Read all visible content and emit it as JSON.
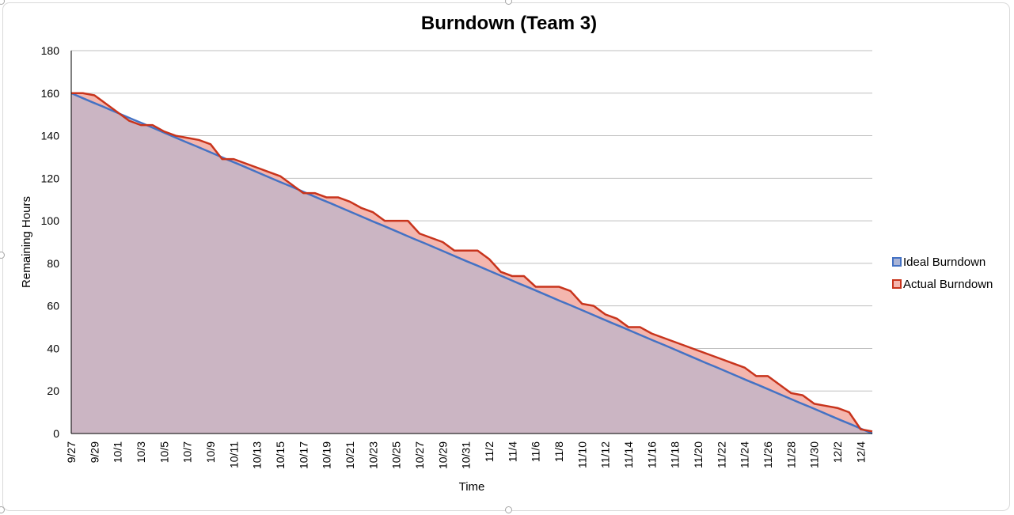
{
  "chart_data": {
    "type": "area",
    "title": "Burndown (Team 3)",
    "xlabel": "Time",
    "ylabel": "Remaining  Hours",
    "ylim": [
      0,
      180
    ],
    "yticks": [
      0,
      20,
      40,
      60,
      80,
      100,
      120,
      140,
      160,
      180
    ],
    "grid": true,
    "legend_position": "right",
    "x_start": "9/27",
    "x_tick_labels": [
      "9/27",
      "9/29",
      "10/1",
      "10/3",
      "10/5",
      "10/7",
      "10/9",
      "10/11",
      "10/13",
      "10/15",
      "10/17",
      "10/19",
      "10/21",
      "10/23",
      "10/25",
      "10/27",
      "10/29",
      "10/31",
      "11/2",
      "11/4",
      "11/6",
      "11/8",
      "11/10",
      "11/12",
      "11/14",
      "11/16",
      "11/18",
      "11/20",
      "11/22",
      "11/24",
      "11/26",
      "11/28",
      "11/30",
      "12/2",
      "12/4"
    ],
    "x_end": "12/5",
    "series": [
      {
        "name": "Ideal Burndown",
        "color": "#4472c4",
        "fill": "#aab4d6",
        "values": [
          160,
          157.9,
          155.8,
          153.8,
          151.7,
          149.6,
          147.5,
          145.5,
          143.4,
          141.3,
          139.2,
          137.1,
          135.1,
          133.0,
          130.9,
          128.8,
          126.8,
          124.7,
          122.6,
          120.5,
          118.4,
          116.4,
          114.3,
          112.2,
          110.1,
          108.1,
          106.0,
          103.9,
          101.8,
          99.7,
          97.7,
          95.6,
          93.5,
          91.4,
          89.4,
          87.3,
          85.2,
          83.1,
          81.0,
          79.0,
          76.9,
          74.8,
          72.7,
          70.6,
          68.6,
          66.5,
          64.4,
          62.3,
          60.3,
          58.2,
          56.1,
          54.0,
          51.9,
          49.9,
          47.8,
          45.7,
          43.6,
          41.6,
          39.5,
          37.4,
          35.3,
          33.2,
          31.2,
          29.1,
          27.0,
          24.9,
          22.9,
          20.8,
          18.7,
          16.6,
          14.5,
          12.5,
          10.4,
          8.3,
          6.2,
          4.2,
          2.1,
          0
        ]
      },
      {
        "name": "Actual Burndown",
        "color": "#c8341c",
        "fill": "#f4b6ae",
        "values": [
          160,
          160,
          159,
          155,
          151,
          147,
          145,
          145,
          142,
          140,
          139,
          138,
          136,
          129,
          129,
          127,
          125,
          123,
          121,
          117,
          113,
          113,
          111,
          111,
          109,
          106,
          104,
          100,
          100,
          100,
          94,
          92,
          90,
          86,
          86,
          86,
          82,
          76,
          74,
          74,
          69,
          69,
          69,
          67,
          61,
          60,
          56,
          54,
          50,
          50,
          47,
          45,
          43,
          41,
          39,
          37,
          35,
          33,
          31,
          27,
          27,
          23,
          19,
          18,
          14,
          13,
          12,
          10,
          2,
          1
        ]
      }
    ]
  }
}
